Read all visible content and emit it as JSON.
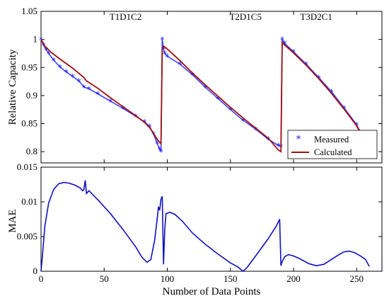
{
  "chart_data": [
    {
      "type": "line",
      "ylabel": "Relative Capacity",
      "xlabel": "",
      "xlim": [
        0,
        270
      ],
      "ylim": [
        0.78,
        1.05
      ],
      "xticks": [
        0,
        50,
        100,
        150,
        200,
        250
      ],
      "yticks": [
        0.8,
        0.85,
        0.9,
        0.95,
        1,
        1.05
      ],
      "ytick_labels": [
        "0.8",
        "0.85",
        "0.9",
        "0.95",
        "1",
        "1.05"
      ],
      "annotations": [
        {
          "text": "T1D1C2",
          "x": 67,
          "y": 1.035
        },
        {
          "text": "T2D1C5",
          "x": 162,
          "y": 1.035
        },
        {
          "text": "T3D2C1",
          "x": 218,
          "y": 1.035
        }
      ],
      "legend_position": "bottom-right",
      "series": [
        {
          "name": "Measured",
          "marker": "asterisk",
          "color": "#1f1fff",
          "points": [
            [
              0,
              1.0
            ],
            [
              2,
              0.99
            ],
            [
              4,
              0.982
            ],
            [
              6,
              0.975
            ],
            [
              10,
              0.963
            ],
            [
              15,
              0.951
            ],
            [
              20,
              0.942
            ],
            [
              25,
              0.934
            ],
            [
              30,
              0.926
            ],
            [
              34,
              0.915
            ],
            [
              38,
              0.912
            ],
            [
              45,
              0.903
            ],
            [
              55,
              0.89
            ],
            [
              65,
              0.877
            ],
            [
              75,
              0.863
            ],
            [
              82,
              0.853
            ],
            [
              86,
              0.845
            ],
            [
              89,
              0.832
            ],
            [
              92,
              0.815
            ],
            [
              94,
              0.804
            ],
            [
              95,
              0.801
            ],
            [
              96,
              1.0
            ],
            [
              97,
              0.983
            ],
            [
              98,
              0.975
            ],
            [
              100,
              0.97
            ],
            [
              110,
              0.956
            ],
            [
              120,
              0.937
            ],
            [
              130,
              0.915
            ],
            [
              140,
              0.895
            ],
            [
              150,
              0.875
            ],
            [
              160,
              0.856
            ],
            [
              170,
              0.84
            ],
            [
              180,
              0.822
            ],
            [
              188,
              0.811
            ],
            [
              190,
              0.809
            ],
            [
              191,
              1.0
            ],
            [
              193,
              0.993
            ],
            [
              200,
              0.978
            ],
            [
              210,
              0.956
            ],
            [
              220,
              0.932
            ],
            [
              230,
              0.907
            ],
            [
              240,
              0.878
            ],
            [
              250,
              0.848
            ],
            [
              260,
              0.803
            ]
          ]
        },
        {
          "name": "Calculated",
          "marker": "none",
          "color": "#a01010",
          "points": [
            [
              0,
              1.0
            ],
            [
              3,
              0.988
            ],
            [
              8,
              0.977
            ],
            [
              15,
              0.965
            ],
            [
              25,
              0.949
            ],
            [
              34,
              0.932
            ],
            [
              36,
              0.926
            ],
            [
              45,
              0.913
            ],
            [
              55,
              0.896
            ],
            [
              65,
              0.88
            ],
            [
              75,
              0.864
            ],
            [
              82,
              0.852
            ],
            [
              86,
              0.843
            ],
            [
              89,
              0.833
            ],
            [
              92,
              0.822
            ],
            [
              95,
              0.814
            ],
            [
              96,
              0.985
            ],
            [
              97,
              0.988
            ],
            [
              100,
              0.983
            ],
            [
              110,
              0.962
            ],
            [
              120,
              0.94
            ],
            [
              130,
              0.919
            ],
            [
              140,
              0.899
            ],
            [
              150,
              0.879
            ],
            [
              160,
              0.86
            ],
            [
              170,
              0.842
            ],
            [
              180,
              0.824
            ],
            [
              188,
              0.803
            ],
            [
              190,
              0.8
            ],
            [
              191,
              0.995
            ],
            [
              193,
              0.99
            ],
            [
              200,
              0.976
            ],
            [
              210,
              0.954
            ],
            [
              220,
              0.93
            ],
            [
              230,
              0.904
            ],
            [
              240,
              0.876
            ],
            [
              250,
              0.846
            ],
            [
              260,
              0.802
            ]
          ]
        }
      ]
    },
    {
      "type": "line",
      "ylabel": "MAE",
      "xlabel": "Number of Data Points",
      "xlim": [
        0,
        270
      ],
      "ylim": [
        0,
        0.015
      ],
      "xticks": [
        0,
        50,
        100,
        150,
        200,
        250
      ],
      "yticks": [
        0,
        0.005,
        0.01,
        0.015
      ],
      "ytick_labels": [
        "0",
        "0.005",
        "0.01",
        "0.015"
      ],
      "series": [
        {
          "color": "#1010c0",
          "points": [
            [
              0,
              0.0
            ],
            [
              1,
              0.002
            ],
            [
              3,
              0.0065
            ],
            [
              6,
              0.0098
            ],
            [
              10,
              0.0118
            ],
            [
              14,
              0.0126
            ],
            [
              18,
              0.0128
            ],
            [
              22,
              0.0127
            ],
            [
              27,
              0.0124
            ],
            [
              31,
              0.012
            ],
            [
              33,
              0.0116
            ],
            [
              34,
              0.0118
            ],
            [
              35,
              0.0131
            ],
            [
              36,
              0.0112
            ],
            [
              38,
              0.0116
            ],
            [
              45,
              0.0103
            ],
            [
              55,
              0.0083
            ],
            [
              65,
              0.006
            ],
            [
              75,
              0.0035
            ],
            [
              80,
              0.002
            ],
            [
              84,
              0.0013
            ],
            [
              87,
              0.0017
            ],
            [
              90,
              0.0045
            ],
            [
              92,
              0.0075
            ],
            [
              93,
              0.0093
            ],
            [
              94,
              0.0088
            ],
            [
              95,
              0.0104
            ],
            [
              96,
              0.0108
            ],
            [
              97,
              0.001
            ],
            [
              98,
              0.006
            ],
            [
              99,
              0.0083
            ],
            [
              102,
              0.0085
            ],
            [
              106,
              0.0082
            ],
            [
              112,
              0.0072
            ],
            [
              120,
              0.0055
            ],
            [
              130,
              0.0039
            ],
            [
              140,
              0.0025
            ],
            [
              150,
              0.0012
            ],
            [
              156,
              0.0006
            ],
            [
              160,
              0.0
            ],
            [
              163,
              0.0005
            ],
            [
              170,
              0.0022
            ],
            [
              180,
              0.0047
            ],
            [
              186,
              0.0064
            ],
            [
              189,
              0.0075
            ],
            [
              190,
              0.0008
            ],
            [
              191,
              0.0014
            ],
            [
              193,
              0.0021
            ],
            [
              196,
              0.0024
            ],
            [
              200,
              0.0022
            ],
            [
              205,
              0.0018
            ],
            [
              212,
              0.0011
            ],
            [
              218,
              0.0008
            ],
            [
              224,
              0.001
            ],
            [
              230,
              0.0017
            ],
            [
              236,
              0.0024
            ],
            [
              240,
              0.0028
            ],
            [
              244,
              0.0029
            ],
            [
              248,
              0.0027
            ],
            [
              253,
              0.0022
            ],
            [
              257,
              0.0017
            ],
            [
              260,
              0.0007
            ]
          ]
        }
      ]
    }
  ]
}
